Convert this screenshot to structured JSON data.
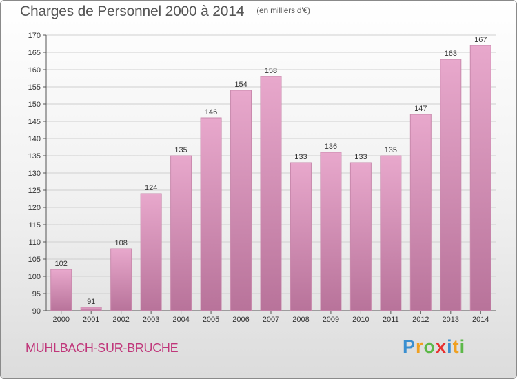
{
  "title": "Charges de Personnel 2000 à 2014",
  "unit_note": "(en milliers d'€)",
  "location": "MUHLBACH-SUR-BRUCHE",
  "brand": {
    "letters": [
      "P",
      "r",
      "o",
      "x",
      "i",
      "t",
      "i"
    ],
    "colors": [
      "#3a8fd0",
      "#f0a020",
      "#5cb848",
      "#e83030",
      "#3a8fd0",
      "#f0a020",
      "#5cb848"
    ]
  },
  "colors": {
    "bar_top": "#e8a8cc",
    "bar_bottom": "#b8739a",
    "bar_edge": "#c98aad"
  },
  "chart_data": {
    "type": "bar",
    "categories": [
      "2000",
      "2001",
      "2002",
      "2003",
      "2004",
      "2005",
      "2006",
      "2007",
      "2008",
      "2009",
      "2010",
      "2011",
      "2012",
      "2013",
      "2014"
    ],
    "values": [
      102,
      91,
      108,
      124,
      135,
      146,
      154,
      158,
      133,
      136,
      133,
      135,
      147,
      163,
      167
    ],
    "ylim": [
      90,
      170
    ],
    "yticks": [
      90,
      95,
      100,
      105,
      110,
      115,
      120,
      125,
      130,
      135,
      140,
      145,
      150,
      155,
      160,
      165,
      170
    ],
    "grid": true
  }
}
